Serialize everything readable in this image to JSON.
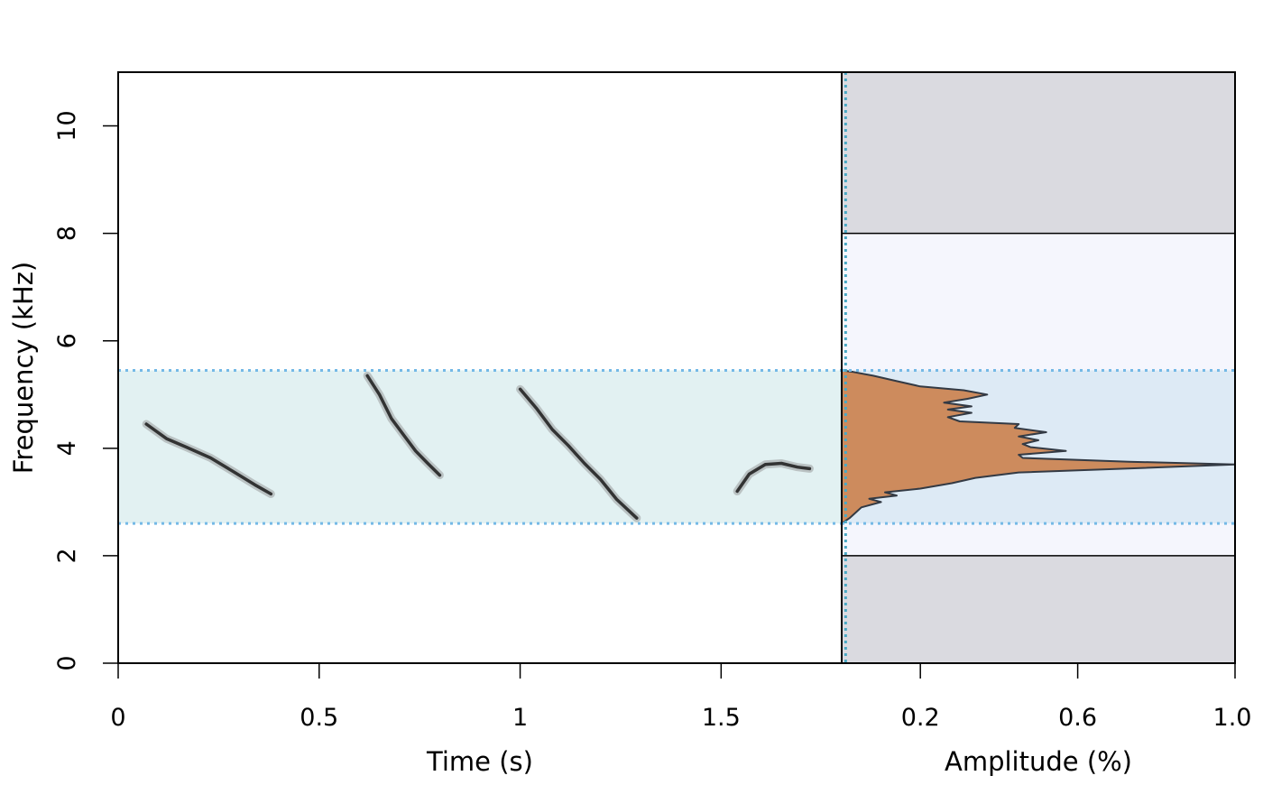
{
  "chart_data": [
    {
      "type": "spectrogram",
      "xlabel": "Time (s)",
      "ylabel": "Frequency (kHz)",
      "xlim": [
        0,
        1.8
      ],
      "ylim": [
        0,
        11
      ],
      "x_ticks": [
        0,
        0.5,
        1,
        1.5
      ],
      "x_tick_labels": [
        "0",
        "0.5",
        "1",
        "1.5"
      ],
      "y_ticks": [
        0,
        2,
        4,
        6,
        8,
        10
      ],
      "y_tick_labels": [
        "0",
        "2",
        "4",
        "6",
        "8",
        "10"
      ],
      "highlight_band": {
        "low": 2.6,
        "high": 5.45,
        "color": "#e2f1f2",
        "line_color": "#74b9e6"
      },
      "calls": [
        {
          "points": [
            [
              0.07,
              4.45
            ],
            [
              0.12,
              4.18
            ],
            [
              0.17,
              4.02
            ],
            [
              0.23,
              3.82
            ],
            [
              0.29,
              3.55
            ],
            [
              0.34,
              3.32
            ],
            [
              0.38,
              3.15
            ]
          ]
        },
        {
          "points": [
            [
              0.62,
              5.35
            ],
            [
              0.65,
              5.0
            ],
            [
              0.68,
              4.55
            ],
            [
              0.71,
              4.25
            ],
            [
              0.74,
              3.95
            ],
            [
              0.77,
              3.72
            ],
            [
              0.8,
              3.5
            ]
          ]
        },
        {
          "points": [
            [
              1.0,
              5.1
            ],
            [
              1.04,
              4.75
            ],
            [
              1.08,
              4.35
            ],
            [
              1.12,
              4.05
            ],
            [
              1.16,
              3.72
            ],
            [
              1.2,
              3.42
            ],
            [
              1.24,
              3.05
            ],
            [
              1.29,
              2.7
            ]
          ]
        },
        {
          "points": [
            [
              1.54,
              3.2
            ],
            [
              1.57,
              3.52
            ],
            [
              1.61,
              3.7
            ],
            [
              1.65,
              3.72
            ],
            [
              1.69,
              3.65
            ],
            [
              1.72,
              3.62
            ]
          ]
        }
      ],
      "colors": {
        "call": "#1a1a1a",
        "call_halo": "#8a8a8a"
      }
    },
    {
      "type": "area",
      "xlabel": "Amplitude (%)",
      "xlim": [
        0,
        1
      ],
      "ylim": [
        0,
        11
      ],
      "x_ticks": [
        0.2,
        0.6,
        1.0
      ],
      "x_tick_labels": [
        "0.2",
        "0.6",
        "1.0"
      ],
      "outer_band_color": "#dadae0",
      "passband": {
        "low": 2,
        "high": 8,
        "color": "#f5f6fd"
      },
      "highlight_band": {
        "low": 2.6,
        "high": 5.45,
        "color": "#ddeaf5",
        "line_color": "#74b9e6"
      },
      "threshold": {
        "value": 0.01,
        "color": "#4aa9c5"
      },
      "fill_color": "#cd8b5d",
      "stroke_color": "#333a44",
      "spectrum": [
        [
          2.6,
          0.0
        ],
        [
          2.7,
          0.02
        ],
        [
          2.8,
          0.035
        ],
        [
          2.9,
          0.05
        ],
        [
          3.0,
          0.1
        ],
        [
          3.06,
          0.07
        ],
        [
          3.12,
          0.14
        ],
        [
          3.18,
          0.11
        ],
        [
          3.25,
          0.2
        ],
        [
          3.35,
          0.28
        ],
        [
          3.45,
          0.34
        ],
        [
          3.55,
          0.45
        ],
        [
          3.62,
          0.72
        ],
        [
          3.7,
          1.0
        ],
        [
          3.75,
          0.73
        ],
        [
          3.82,
          0.46
        ],
        [
          3.88,
          0.45
        ],
        [
          3.95,
          0.57
        ],
        [
          4.02,
          0.48
        ],
        [
          4.08,
          0.46
        ],
        [
          4.15,
          0.5
        ],
        [
          4.22,
          0.45
        ],
        [
          4.3,
          0.52
        ],
        [
          4.38,
          0.44
        ],
        [
          4.45,
          0.45
        ],
        [
          4.5,
          0.3
        ],
        [
          4.58,
          0.27
        ],
        [
          4.66,
          0.33
        ],
        [
          4.72,
          0.27
        ],
        [
          4.78,
          0.33
        ],
        [
          4.85,
          0.26
        ],
        [
          4.92,
          0.32
        ],
        [
          5.0,
          0.37
        ],
        [
          5.08,
          0.31
        ],
        [
          5.15,
          0.2
        ],
        [
          5.25,
          0.14
        ],
        [
          5.35,
          0.08
        ],
        [
          5.42,
          0.03
        ],
        [
          5.45,
          0.0
        ]
      ]
    }
  ]
}
